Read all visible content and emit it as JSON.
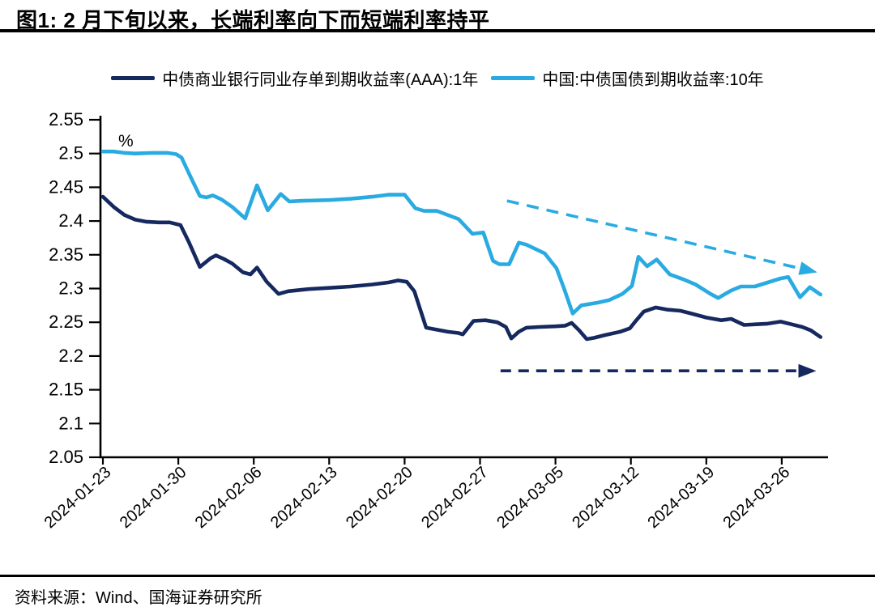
{
  "title": "图1: 2 月下旬以来，长端利率向下而短端利率持平",
  "source": "资料来源：Wind、国海证券研究所",
  "legend": [
    {
      "label": "中债商业银行同业存单到期收益率(AAA):1年",
      "color": "#16295f"
    },
    {
      "label": "中国:中债国债到期收益率:10年",
      "color": "#29abe2"
    }
  ],
  "chart_data": {
    "type": "line",
    "title": "图1: 2 月下旬以来，长端利率向下而短端利率持平",
    "unit_label": "%",
    "grid": false,
    "legend_position": "top",
    "x_axis": {
      "tick_labels": [
        "2024-01-23",
        "2024-01-30",
        "2024-02-06",
        "2024-02-13",
        "2024-02-20",
        "2024-02-27",
        "2024-03-05",
        "2024-03-12",
        "2024-03-19",
        "2024-03-26"
      ],
      "tick_days": [
        0,
        7,
        14,
        21,
        28,
        35,
        42,
        49,
        56,
        63
      ],
      "days_range": [
        0,
        67
      ]
    },
    "y_axis": {
      "min": 2.05,
      "max": 2.55,
      "ticks": [
        2.05,
        2.1,
        2.15,
        2.2,
        2.25,
        2.3,
        2.35,
        2.4,
        2.45,
        2.5,
        2.55
      ],
      "tick_labels": [
        "2.05",
        "2.1",
        "2.15",
        "2.2",
        "2.25",
        "2.3",
        "2.35",
        "2.4",
        "2.45",
        "2.5",
        "2.55"
      ]
    },
    "series": [
      {
        "name": "中债商业银行同业存单到期收益率(AAA):1年",
        "color": "#16295f",
        "points": [
          [
            0,
            2.436
          ],
          [
            1,
            2.421
          ],
          [
            2,
            2.409
          ],
          [
            3,
            2.402
          ],
          [
            4,
            2.399
          ],
          [
            5.2,
            2.398
          ],
          [
            6.2,
            2.398
          ],
          [
            7.2,
            2.394
          ],
          [
            8,
            2.368
          ],
          [
            9,
            2.332
          ],
          [
            10,
            2.345
          ],
          [
            10.5,
            2.349
          ],
          [
            11.2,
            2.344
          ],
          [
            12,
            2.337
          ],
          [
            13,
            2.324
          ],
          [
            13.7,
            2.321
          ],
          [
            14.3,
            2.331
          ],
          [
            15.2,
            2.31
          ],
          [
            16.3,
            2.292
          ],
          [
            17.2,
            2.296
          ],
          [
            19,
            2.299
          ],
          [
            21,
            2.301
          ],
          [
            23,
            2.303
          ],
          [
            25,
            2.306
          ],
          [
            26.5,
            2.309
          ],
          [
            27.4,
            2.312
          ],
          [
            28.2,
            2.31
          ],
          [
            28.9,
            2.296
          ],
          [
            30,
            2.242
          ],
          [
            31,
            2.239
          ],
          [
            32,
            2.236
          ],
          [
            33,
            2.234
          ],
          [
            33.4,
            2.232
          ],
          [
            34.4,
            2.252
          ],
          [
            35.5,
            2.253
          ],
          [
            36.6,
            2.25
          ],
          [
            37.4,
            2.243
          ],
          [
            37.9,
            2.226
          ],
          [
            38.6,
            2.236
          ],
          [
            39.3,
            2.242
          ],
          [
            40.5,
            2.243
          ],
          [
            42,
            2.244
          ],
          [
            42.9,
            2.245
          ],
          [
            43.5,
            2.249
          ],
          [
            44.2,
            2.238
          ],
          [
            44.9,
            2.225
          ],
          [
            45.6,
            2.227
          ],
          [
            46.6,
            2.231
          ],
          [
            48,
            2.236
          ],
          [
            48.9,
            2.241
          ],
          [
            49.5,
            2.253
          ],
          [
            50.2,
            2.266
          ],
          [
            51.3,
            2.272
          ],
          [
            52.3,
            2.269
          ],
          [
            53.6,
            2.267
          ],
          [
            54.6,
            2.263
          ],
          [
            56,
            2.257
          ],
          [
            57.4,
            2.253
          ],
          [
            58.3,
            2.255
          ],
          [
            59.5,
            2.246
          ],
          [
            60.6,
            2.247
          ],
          [
            61.7,
            2.248
          ],
          [
            62.9,
            2.251
          ],
          [
            63.9,
            2.247
          ],
          [
            64.9,
            2.243
          ],
          [
            65.7,
            2.238
          ],
          [
            66.6,
            2.228
          ]
        ]
      },
      {
        "name": "中国:中债国债到期收益率:10年",
        "color": "#29abe2",
        "points": [
          [
            0,
            2.503
          ],
          [
            1,
            2.503
          ],
          [
            2,
            2.501
          ],
          [
            3,
            2.5
          ],
          [
            4.5,
            2.501
          ],
          [
            6,
            2.501
          ],
          [
            6.8,
            2.499
          ],
          [
            7.3,
            2.494
          ],
          [
            8,
            2.47
          ],
          [
            9,
            2.437
          ],
          [
            9.6,
            2.435
          ],
          [
            10.2,
            2.438
          ],
          [
            11,
            2.432
          ],
          [
            12,
            2.421
          ],
          [
            13.2,
            2.404
          ],
          [
            14.3,
            2.453
          ],
          [
            15.3,
            2.416
          ],
          [
            16.5,
            2.44
          ],
          [
            17.3,
            2.429
          ],
          [
            18.5,
            2.43
          ],
          [
            21,
            2.431
          ],
          [
            23,
            2.433
          ],
          [
            25,
            2.436
          ],
          [
            26.5,
            2.439
          ],
          [
            28,
            2.439
          ],
          [
            29,
            2.419
          ],
          [
            29.8,
            2.415
          ],
          [
            31,
            2.415
          ],
          [
            33,
            2.403
          ],
          [
            34.3,
            2.381
          ],
          [
            35.3,
            2.383
          ],
          [
            36.2,
            2.341
          ],
          [
            36.8,
            2.336
          ],
          [
            37.7,
            2.336
          ],
          [
            38.6,
            2.368
          ],
          [
            39.3,
            2.365
          ],
          [
            41,
            2.352
          ],
          [
            42.1,
            2.33
          ],
          [
            42.8,
            2.3
          ],
          [
            43.6,
            2.263
          ],
          [
            44.4,
            2.275
          ],
          [
            45.9,
            2.279
          ],
          [
            47,
            2.283
          ],
          [
            48.2,
            2.292
          ],
          [
            49.1,
            2.304
          ],
          [
            49.7,
            2.347
          ],
          [
            50.5,
            2.333
          ],
          [
            51.4,
            2.343
          ],
          [
            52.6,
            2.321
          ],
          [
            53.8,
            2.314
          ],
          [
            55,
            2.306
          ],
          [
            56.4,
            2.292
          ],
          [
            57.1,
            2.286
          ],
          [
            58.3,
            2.297
          ],
          [
            59.2,
            2.303
          ],
          [
            60.5,
            2.303
          ],
          [
            61.7,
            2.309
          ],
          [
            62.9,
            2.315
          ],
          [
            63.6,
            2.317
          ],
          [
            64.7,
            2.287
          ],
          [
            65.6,
            2.302
          ],
          [
            66.6,
            2.291
          ]
        ]
      }
    ],
    "annotations": [
      {
        "type": "dashed_arrow",
        "color": "#29abe2",
        "from": [
          37.5,
          2.43
        ],
        "to": [
          66.3,
          2.324
        ]
      },
      {
        "type": "dashed_arrow",
        "color": "#16295f",
        "from": [
          36.9,
          2.178
        ],
        "to": [
          66.2,
          2.178
        ]
      }
    ]
  }
}
